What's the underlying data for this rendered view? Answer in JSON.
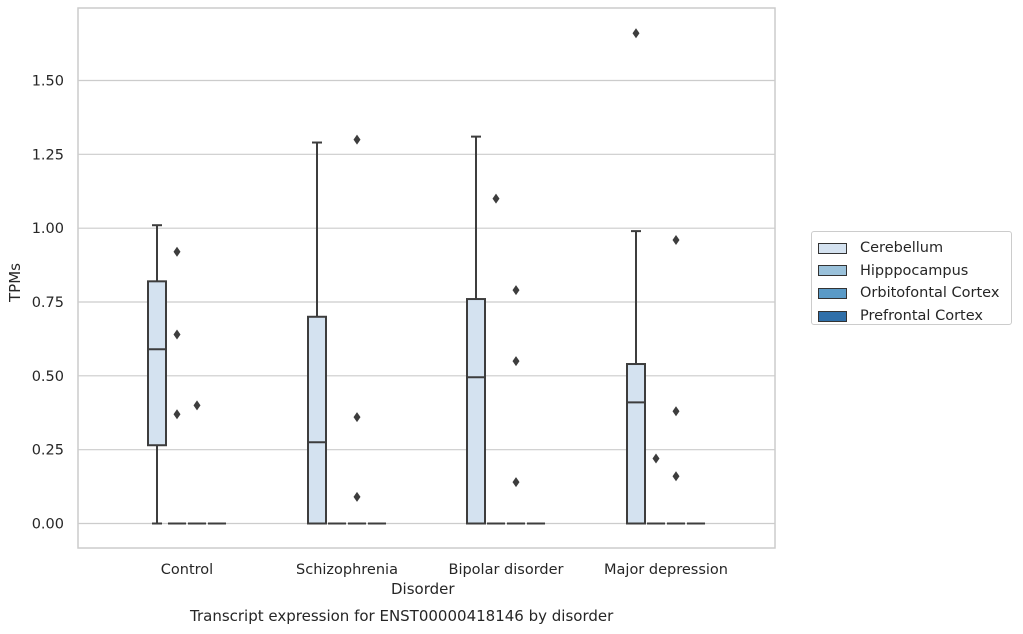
{
  "chart_data": {
    "type": "box",
    "title": "",
    "caption": "Transcript expression for ENST00000418146 by disorder",
    "xlabel": "Disorder",
    "ylabel": "TPMs",
    "ylim": [
      -0.08,
      1.75
    ],
    "yticks": [
      "0.00",
      "0.25",
      "0.50",
      "0.75",
      "1.00",
      "1.25",
      "1.50"
    ],
    "grid": true,
    "legend_position": "right",
    "categories": [
      "Control",
      "Schizophrenia",
      "Bipolar disorder",
      "Major depression"
    ],
    "series": [
      {
        "name": "Cerebellum",
        "color": "#d4e2f0",
        "boxes": [
          {
            "whislo": 0.0,
            "q1": 0.265,
            "med": 0.59,
            "q3": 0.82,
            "whishi": 1.01,
            "fliers": []
          },
          {
            "whislo": 0.0,
            "q1": 0.0,
            "med": 0.275,
            "q3": 0.7,
            "whishi": 1.29,
            "fliers": []
          },
          {
            "whislo": 0.0,
            "q1": 0.0,
            "med": 0.495,
            "q3": 0.76,
            "whishi": 1.31,
            "fliers": []
          },
          {
            "whislo": 0.0,
            "q1": 0.0,
            "med": 0.41,
            "q3": 0.54,
            "whishi": 0.99,
            "fliers": [
              1.66
            ]
          }
        ]
      },
      {
        "name": "Hipppocampus",
        "color": "#9ac1da",
        "boxes": [
          {
            "whislo": 0,
            "q1": 0,
            "med": 0,
            "q3": 0,
            "whishi": 0,
            "fliers": [
              0.92,
              0.64,
              0.37
            ]
          },
          {
            "whislo": 0,
            "q1": 0,
            "med": 0,
            "q3": 0,
            "whishi": 0,
            "fliers": []
          },
          {
            "whislo": 0,
            "q1": 0,
            "med": 0,
            "q3": 0,
            "whishi": 0,
            "fliers": [
              1.1
            ]
          },
          {
            "whislo": 0,
            "q1": 0,
            "med": 0,
            "q3": 0,
            "whishi": 0,
            "fliers": [
              0.22
            ]
          }
        ]
      },
      {
        "name": "Orbitofontal Cortex",
        "color": "#5a9ac7",
        "boxes": [
          {
            "whislo": 0,
            "q1": 0,
            "med": 0,
            "q3": 0,
            "whishi": 0,
            "fliers": [
              0.4
            ]
          },
          {
            "whislo": 0,
            "q1": 0,
            "med": 0,
            "q3": 0,
            "whishi": 0,
            "fliers": [
              1.3,
              0.36,
              0.09
            ]
          },
          {
            "whislo": 0,
            "q1": 0,
            "med": 0,
            "q3": 0,
            "whishi": 0,
            "fliers": [
              0.79,
              0.55,
              0.14
            ]
          },
          {
            "whislo": 0,
            "q1": 0,
            "med": 0,
            "q3": 0,
            "whishi": 0,
            "fliers": [
              0.96,
              0.38,
              0.16
            ]
          }
        ]
      },
      {
        "name": "Prefrontal Cortex",
        "color": "#2f6fa9",
        "boxes": [
          {
            "whislo": 0,
            "q1": 0,
            "med": 0,
            "q3": 0,
            "whishi": 0,
            "fliers": []
          },
          {
            "whislo": 0,
            "q1": 0,
            "med": 0,
            "q3": 0,
            "whishi": 0,
            "fliers": []
          },
          {
            "whislo": 0,
            "q1": 0,
            "med": 0,
            "q3": 0,
            "whishi": 0,
            "fliers": []
          },
          {
            "whislo": 0,
            "q1": 0,
            "med": 0,
            "q3": 0,
            "whishi": 0,
            "fliers": []
          }
        ]
      }
    ]
  }
}
